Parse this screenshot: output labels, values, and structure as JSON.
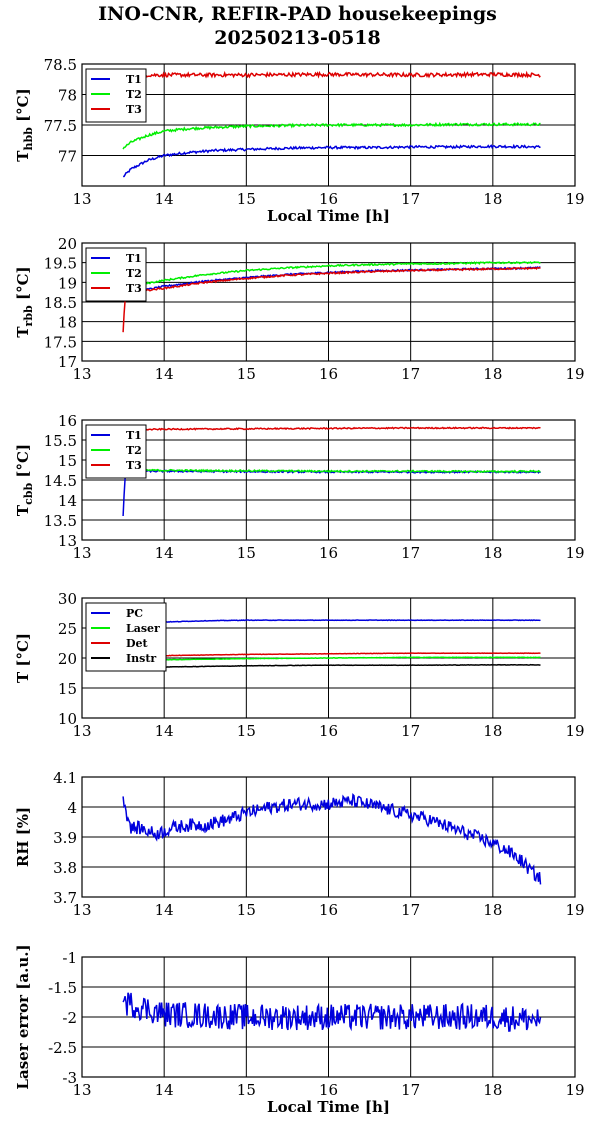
{
  "figure": {
    "title_line1": "INO-CNR, REFIR-PAD housekeepings",
    "title_line2": "20250213-0518"
  },
  "colors": {
    "blue": "#0000dd",
    "green": "#00ee00",
    "red": "#dd0000",
    "black": "#000000"
  },
  "chart_data": [
    {
      "type": "line",
      "ylabel": "T_hbb [°C]",
      "ylabel_main": "T",
      "ylabel_sub": "hbb",
      "ylabel_unit": " [°C]",
      "xlabel": "Local Time [h]",
      "xlim": [
        13,
        19
      ],
      "ylim": [
        76.5,
        78.5
      ],
      "xticks": [
        13,
        14,
        15,
        16,
        17,
        18,
        19
      ],
      "yticks": [
        77,
        77.5,
        78,
        78.5
      ],
      "ytick_labels": [
        "77",
        "77.5",
        "78",
        "78.5"
      ],
      "grid": true,
      "legend": "top-left",
      "series": [
        {
          "name": "T1",
          "color": "#0000dd",
          "x": [
            13.5,
            13.6,
            13.8,
            14.0,
            14.3,
            14.6,
            15.0,
            15.5,
            16.0,
            16.5,
            17.0,
            17.5,
            18.0,
            18.58
          ],
          "y": [
            76.65,
            76.78,
            76.92,
            77.0,
            77.05,
            77.08,
            77.1,
            77.12,
            77.13,
            77.13,
            77.14,
            77.14,
            77.15,
            77.14
          ],
          "noise": 0.02
        },
        {
          "name": "T2",
          "color": "#00ee00",
          "x": [
            13.5,
            13.6,
            13.8,
            14.0,
            14.3,
            14.6,
            15.0,
            15.5,
            16.0,
            16.5,
            17.0,
            17.5,
            18.0,
            18.58
          ],
          "y": [
            77.12,
            77.22,
            77.33,
            77.4,
            77.44,
            77.46,
            77.48,
            77.49,
            77.5,
            77.5,
            77.5,
            77.51,
            77.51,
            77.51
          ],
          "noise": 0.02
        },
        {
          "name": "T3",
          "color": "#dd0000",
          "x": [
            13.5,
            14.0,
            15.0,
            16.0,
            17.0,
            18.0,
            18.58
          ],
          "y": [
            78.32,
            78.32,
            78.32,
            78.33,
            78.32,
            78.33,
            78.32
          ],
          "noise": 0.03
        }
      ]
    },
    {
      "type": "line",
      "ylabel": "T_rbb [°C]",
      "ylabel_main": "T",
      "ylabel_sub": "rbb",
      "ylabel_unit": " [°C]",
      "xlabel": "",
      "xlim": [
        13,
        19
      ],
      "ylim": [
        17,
        20
      ],
      "xticks": [
        13,
        14,
        15,
        16,
        17,
        18,
        19
      ],
      "yticks": [
        17,
        17.5,
        18,
        18.5,
        19,
        19.5,
        20
      ],
      "ytick_labels": [
        "17",
        "17.5",
        "18",
        "18.5",
        "19",
        "19.5",
        "20"
      ],
      "grid": true,
      "legend": "top-left",
      "series": [
        {
          "name": "T1",
          "color": "#0000dd",
          "x": [
            13.55,
            13.8,
            14.0,
            14.5,
            15.0,
            15.5,
            16.0,
            16.5,
            17.0,
            17.5,
            18.0,
            18.58
          ],
          "y": [
            18.75,
            18.82,
            18.9,
            19.03,
            19.12,
            19.2,
            19.25,
            19.29,
            19.31,
            19.33,
            19.35,
            19.37
          ],
          "noise": 0.02
        },
        {
          "name": "T2",
          "color": "#00ee00",
          "x": [
            13.55,
            13.8,
            14.0,
            14.5,
            15.0,
            15.5,
            16.0,
            16.5,
            17.0,
            17.5,
            18.0,
            18.58
          ],
          "y": [
            18.9,
            18.98,
            19.05,
            19.2,
            19.3,
            19.37,
            19.42,
            19.45,
            19.47,
            19.48,
            19.5,
            19.5
          ],
          "noise": 0.02
        },
        {
          "name": "T3",
          "color": "#dd0000",
          "x": [
            13.5,
            13.52,
            13.55,
            13.8,
            14.0,
            14.5,
            15.0,
            15.5,
            16.0,
            16.5,
            17.0,
            17.5,
            18.0,
            18.58
          ],
          "y": [
            17.75,
            18.5,
            18.7,
            18.8,
            18.85,
            19.0,
            19.1,
            19.18,
            19.23,
            19.27,
            19.3,
            19.32,
            19.34,
            19.36
          ],
          "noise": 0.02
        }
      ]
    },
    {
      "type": "line",
      "ylabel": "T_cbb [°C]",
      "ylabel_main": "T",
      "ylabel_sub": "cbb",
      "ylabel_unit": " [°C]",
      "xlabel": "",
      "xlim": [
        13,
        19
      ],
      "ylim": [
        13,
        16
      ],
      "xticks": [
        13,
        14,
        15,
        16,
        17,
        18,
        19
      ],
      "yticks": [
        13,
        13.5,
        14,
        14.5,
        15,
        15.5,
        16
      ],
      "ytick_labels": [
        "13",
        "13.5",
        "14",
        "14.5",
        "15",
        "15.5",
        "16"
      ],
      "grid": true,
      "legend": "top-left",
      "series": [
        {
          "name": "T1",
          "color": "#0000dd",
          "x": [
            13.5,
            13.52,
            13.55,
            14.0,
            15.0,
            16.0,
            17.0,
            18.0,
            18.58
          ],
          "y": [
            13.6,
            14.5,
            14.72,
            14.72,
            14.71,
            14.7,
            14.7,
            14.7,
            14.7
          ],
          "noise": 0.02
        },
        {
          "name": "T2",
          "color": "#00ee00",
          "x": [
            13.55,
            14.0,
            15.0,
            16.0,
            17.0,
            18.0,
            18.58
          ],
          "y": [
            14.75,
            14.74,
            14.73,
            14.72,
            14.72,
            14.71,
            14.72
          ],
          "noise": 0.02
        },
        {
          "name": "T3",
          "color": "#dd0000",
          "x": [
            13.55,
            14.0,
            15.0,
            16.0,
            17.0,
            18.0,
            18.58
          ],
          "y": [
            15.75,
            15.77,
            15.78,
            15.79,
            15.8,
            15.8,
            15.8
          ],
          "noise": 0.015
        }
      ]
    },
    {
      "type": "line",
      "ylabel": "T [°C]",
      "ylabel_main": "T [°C]",
      "ylabel_sub": "",
      "ylabel_unit": "",
      "xlabel": "",
      "xlim": [
        13,
        19
      ],
      "ylim": [
        10,
        30
      ],
      "xticks": [
        13,
        14,
        15,
        16,
        17,
        18,
        19
      ],
      "yticks": [
        10,
        15,
        20,
        25,
        30
      ],
      "ytick_labels": [
        "10",
        "15",
        "20",
        "25",
        "30"
      ],
      "grid": true,
      "legend": "top-left",
      "series": [
        {
          "name": "PC",
          "color": "#0000dd",
          "x": [
            13.55,
            14.0,
            14.5,
            15.0,
            16.0,
            17.0,
            18.0,
            18.58
          ],
          "y": [
            25.8,
            26.0,
            26.2,
            26.3,
            26.3,
            26.3,
            26.3,
            26.3
          ],
          "noise": 0.04
        },
        {
          "name": "Laser",
          "color": "#00ee00",
          "x": [
            13.55,
            14.0,
            15.0,
            16.0,
            17.0,
            18.0,
            18.58
          ],
          "y": [
            19.5,
            19.7,
            19.9,
            20.0,
            20.1,
            20.1,
            20.1
          ],
          "noise": 0.03
        },
        {
          "name": "Det",
          "color": "#dd0000",
          "x": [
            13.55,
            14.0,
            15.0,
            16.0,
            17.0,
            18.0,
            18.58
          ],
          "y": [
            20.2,
            20.4,
            20.6,
            20.7,
            20.8,
            20.8,
            20.8
          ],
          "noise": 0.03
        },
        {
          "name": "Instr",
          "color": "#000000",
          "x": [
            13.55,
            14.0,
            15.0,
            16.0,
            17.0,
            18.0,
            18.58
          ],
          "y": [
            18.3,
            18.5,
            18.7,
            18.8,
            18.8,
            18.85,
            18.85
          ],
          "noise": 0.03
        }
      ]
    },
    {
      "type": "line",
      "ylabel": "RH [%]",
      "ylabel_main": "RH [%]",
      "ylabel_sub": "",
      "ylabel_unit": "",
      "xlabel": "",
      "xlim": [
        13,
        19
      ],
      "ylim": [
        3.7,
        4.1
      ],
      "xticks": [
        13,
        14,
        15,
        16,
        17,
        18,
        19
      ],
      "yticks": [
        3.7,
        3.8,
        3.9,
        4,
        4.1
      ],
      "ytick_labels": [
        "3.7",
        "3.8",
        "3.9",
        "4",
        "4.1"
      ],
      "grid": true,
      "legend": "",
      "series": [
        {
          "name": "",
          "color": "#0000dd",
          "x": [
            13.5,
            13.55,
            13.6,
            13.7,
            13.9,
            14.1,
            14.3,
            14.5,
            14.8,
            15.0,
            15.3,
            15.6,
            16.0,
            16.3,
            16.6,
            16.9,
            17.2,
            17.5,
            17.8,
            18.0,
            18.2,
            18.35,
            18.45,
            18.58
          ],
          "y": [
            4.04,
            3.97,
            3.93,
            3.93,
            3.91,
            3.93,
            3.94,
            3.94,
            3.96,
            3.98,
            4.0,
            4.01,
            4.01,
            4.02,
            4.0,
            3.98,
            3.96,
            3.93,
            3.9,
            3.88,
            3.85,
            3.82,
            3.79,
            3.76
          ],
          "noise": 0.022
        }
      ]
    },
    {
      "type": "line",
      "ylabel": "Laser error [a.u.]",
      "ylabel_main": "Laser error [a.u.]",
      "ylabel_sub": "",
      "ylabel_unit": "",
      "xlabel": "Local Time [h]",
      "xlim": [
        13,
        19
      ],
      "ylim": [
        -3,
        -1
      ],
      "xticks": [
        13,
        14,
        15,
        16,
        17,
        18,
        19
      ],
      "yticks": [
        -3,
        -2.5,
        -2,
        -1.5,
        -1
      ],
      "ytick_labels": [
        "-3",
        "-2.5",
        "-2",
        "-1.5",
        "-1"
      ],
      "grid": true,
      "legend": "",
      "series": [
        {
          "name": "",
          "color": "#0000dd",
          "x": [
            13.5,
            14.0,
            15.0,
            16.0,
            17.0,
            18.0,
            18.58
          ],
          "y": [
            -1.75,
            -1.95,
            -2.0,
            -2.0,
            -2.0,
            -2.0,
            -2.05
          ],
          "noise": 0.22
        }
      ]
    }
  ]
}
